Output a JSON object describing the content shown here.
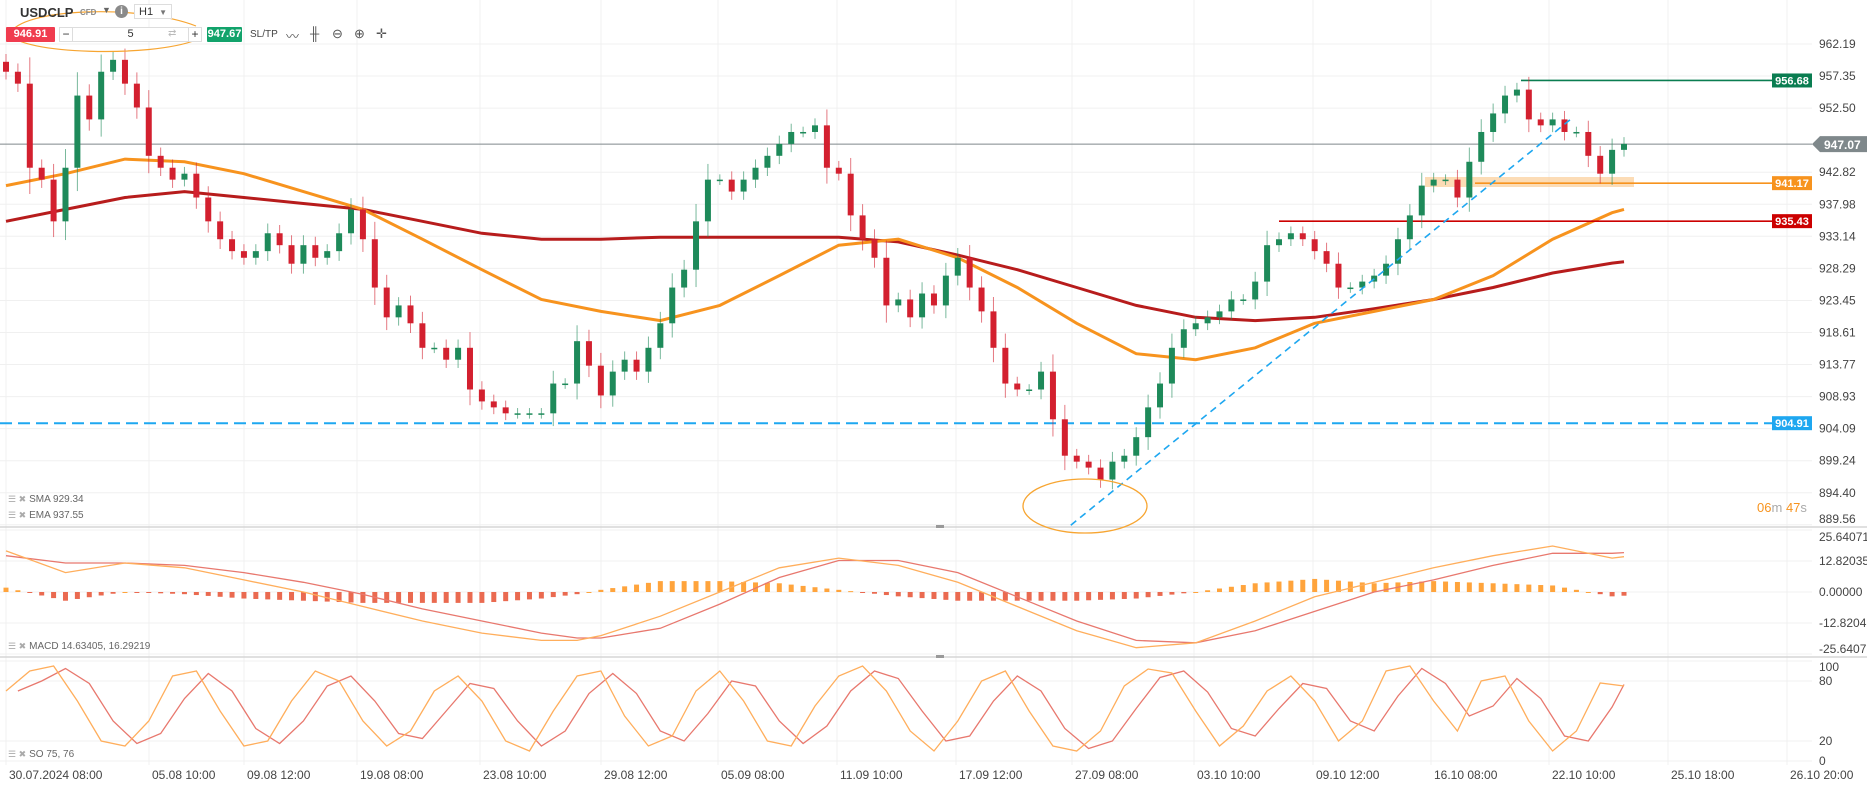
{
  "header": {
    "symbol": "USDCLP",
    "instrument_type": "CFD",
    "timeframe": "H1",
    "sell_price": "946.91",
    "buy_price": "947.67",
    "quantity": "5",
    "minus_label": "−",
    "plus_label": "+",
    "sltp_label": "SL/TP",
    "icons": [
      "chevron-down-icon",
      "info-icon",
      "line-chart-icon",
      "candles-icon",
      "zoom-out-icon",
      "zoom-in-icon",
      "crosshair-icon",
      "swap-icon"
    ]
  },
  "colors": {
    "bull": "#1e8a5a",
    "bear": "#d3202f",
    "sma": "#b71c1c",
    "ema": "#f7931e",
    "level_blue": "#1ea7f0",
    "level_green": "#0a7d51",
    "level_red": "#cc0000",
    "level_orange": "#f7931e",
    "current_price": "#7f888b",
    "macd_line": "#ffae5c",
    "signal_line": "#e8786e",
    "stoch_k": "#ffae5c",
    "stoch_d": "#e8786e"
  },
  "countdown": {
    "minutes": "06",
    "m": "m",
    "seconds": "47",
    "s": "s"
  },
  "legends": {
    "sma": "SMA 929.34",
    "ema": "EMA 937.55",
    "macd": "MACD 14.63405, 16.29219",
    "so": "SO 75, 76"
  },
  "chart_data": [
    {
      "type": "candlestick",
      "pane": "price",
      "price_ticks": [
        "962.19",
        "957.35",
        "952.50",
        "942.82",
        "937.98",
        "933.14",
        "928.29",
        "923.45",
        "918.61",
        "913.77",
        "908.93",
        "904.09",
        "899.24",
        "894.40",
        "889.56"
      ],
      "x_ticks": [
        "30.07.2024 08:00",
        "05.08 10:00",
        "09.08 12:00",
        "19.08 08:00",
        "23.08 10:00",
        "29.08 12:00",
        "05.09 08:00",
        "11.09 10:00",
        "17.09 12:00",
        "27.09 08:00",
        "03.10 10:00",
        "09.10 12:00",
        "16.10 08:00",
        "22.10 10:00",
        "25.10 18:00",
        "26.10 20:00"
      ],
      "closes": [
        958.0,
        956.2,
        943.5,
        941.7,
        935.4,
        943.5,
        954.4,
        950.8,
        958.0,
        959.8,
        956.2,
        952.6,
        945.3,
        943.5,
        941.7,
        942.6,
        939.0,
        935.4,
        932.7,
        930.9,
        929.9,
        930.9,
        933.6,
        931.8,
        929.0,
        931.8,
        929.9,
        930.9,
        933.6,
        937.2,
        932.7,
        925.4,
        920.9,
        922.7,
        920.0,
        916.3,
        916.3,
        914.5,
        916.3,
        910.0,
        908.2,
        907.3,
        906.4,
        906.4,
        906.4,
        906.4,
        910.9,
        910.9,
        917.3,
        913.6,
        909.1,
        912.7,
        914.5,
        912.7,
        916.3,
        920.0,
        925.4,
        928.1,
        935.4,
        941.7,
        941.7,
        939.9,
        941.7,
        943.5,
        945.3,
        947.1,
        948.9,
        948.9,
        949.9,
        943.5,
        942.6,
        936.3,
        932.7,
        929.9,
        922.7,
        923.6,
        920.9,
        924.5,
        922.7,
        927.2,
        929.9,
        925.4,
        921.8,
        916.3,
        910.9,
        910.0,
        910.0,
        912.7,
        905.5,
        900.0,
        899.1,
        898.2,
        896.4,
        899.1,
        900.0,
        902.8,
        907.3,
        910.9,
        916.3,
        919.1,
        920.0,
        920.9,
        921.8,
        923.6,
        923.6,
        926.3,
        931.8,
        932.7,
        933.6,
        932.7,
        930.9,
        929.0,
        925.4,
        925.4,
        926.3,
        927.2,
        929.0,
        932.7,
        936.3,
        940.8,
        941.7,
        941.7,
        939.0,
        944.4,
        948.9,
        951.7,
        954.4,
        955.3,
        950.8,
        949.9,
        950.8,
        948.9,
        948.9,
        945.3,
        942.6,
        946.2,
        947.1
      ],
      "sma": [
        [
          0,
          935.4
        ],
        [
          5,
          937.2
        ],
        [
          10,
          939.0
        ],
        [
          15,
          939.9
        ],
        [
          20,
          939.0
        ],
        [
          25,
          938.1
        ],
        [
          30,
          937.2
        ],
        [
          35,
          935.4
        ],
        [
          40,
          933.6
        ],
        [
          45,
          932.7
        ],
        [
          50,
          932.7
        ],
        [
          55,
          933.0
        ],
        [
          60,
          933.0
        ],
        [
          65,
          933.0
        ],
        [
          70,
          933.0
        ],
        [
          75,
          932.3
        ],
        [
          80,
          930.3
        ],
        [
          85,
          928.1
        ],
        [
          90,
          925.4
        ],
        [
          95,
          922.7
        ],
        [
          100,
          920.9
        ],
        [
          105,
          920.4
        ],
        [
          110,
          920.9
        ],
        [
          115,
          922.2
        ],
        [
          120,
          923.6
        ],
        [
          125,
          925.4
        ],
        [
          130,
          927.6
        ],
        [
          135,
          929.1
        ],
        [
          136,
          929.3
        ]
      ],
      "ema": [
        [
          0,
          940.8
        ],
        [
          5,
          942.6
        ],
        [
          10,
          944.8
        ],
        [
          15,
          944.4
        ],
        [
          20,
          942.6
        ],
        [
          25,
          939.9
        ],
        [
          30,
          937.2
        ],
        [
          35,
          932.7
        ],
        [
          40,
          928.1
        ],
        [
          45,
          923.6
        ],
        [
          50,
          921.8
        ],
        [
          55,
          920.4
        ],
        [
          60,
          922.7
        ],
        [
          65,
          927.2
        ],
        [
          70,
          931.8
        ],
        [
          75,
          932.7
        ],
        [
          80,
          929.9
        ],
        [
          85,
          925.4
        ],
        [
          90,
          920.0
        ],
        [
          95,
          915.4
        ],
        [
          100,
          914.5
        ],
        [
          105,
          916.3
        ],
        [
          110,
          920.0
        ],
        [
          115,
          921.8
        ],
        [
          120,
          923.6
        ],
        [
          125,
          927.2
        ],
        [
          130,
          932.7
        ],
        [
          135,
          936.7
        ],
        [
          136,
          937.2
        ]
      ],
      "levels": {
        "current": "947.07",
        "high": "956.68",
        "resistance": "941.17",
        "mid": "935.43",
        "support": "904.91"
      },
      "trendline": [
        [
          89.5,
          889.5
        ],
        [
          131.5,
          950.8
        ]
      ]
    },
    {
      "type": "line",
      "pane": "macd",
      "y_ticks": [
        "25.64071",
        "12.82035",
        "0.00000",
        "-12.8204",
        "-25.6407"
      ],
      "macd": [
        [
          0,
          17
        ],
        [
          5,
          8
        ],
        [
          10,
          12
        ],
        [
          15,
          10
        ],
        [
          20,
          5
        ],
        [
          25,
          0
        ],
        [
          30,
          -6
        ],
        [
          35,
          -12
        ],
        [
          40,
          -17
        ],
        [
          45,
          -20
        ],
        [
          48,
          -20
        ],
        [
          50,
          -18
        ],
        [
          55,
          -10
        ],
        [
          60,
          0
        ],
        [
          65,
          10
        ],
        [
          70,
          14
        ],
        [
          75,
          11
        ],
        [
          80,
          4
        ],
        [
          85,
          -6
        ],
        [
          90,
          -16
        ],
        [
          95,
          -23
        ],
        [
          100,
          -21
        ],
        [
          105,
          -12
        ],
        [
          110,
          -2
        ],
        [
          115,
          4
        ],
        [
          120,
          10
        ],
        [
          125,
          15
        ],
        [
          130,
          19
        ],
        [
          135,
          14
        ],
        [
          136,
          14.6
        ]
      ],
      "signal": [
        [
          0,
          15
        ],
        [
          5,
          12
        ],
        [
          10,
          12
        ],
        [
          15,
          11
        ],
        [
          20,
          8
        ],
        [
          25,
          4
        ],
        [
          30,
          -1
        ],
        [
          35,
          -7
        ],
        [
          40,
          -12
        ],
        [
          45,
          -17
        ],
        [
          48,
          -19
        ],
        [
          50,
          -19
        ],
        [
          55,
          -15
        ],
        [
          60,
          -5
        ],
        [
          65,
          6
        ],
        [
          70,
          13
        ],
        [
          75,
          13
        ],
        [
          80,
          8
        ],
        [
          85,
          -2
        ],
        [
          90,
          -12
        ],
        [
          95,
          -20
        ],
        [
          100,
          -21
        ],
        [
          105,
          -16
        ],
        [
          110,
          -8
        ],
        [
          115,
          0
        ],
        [
          120,
          5
        ],
        [
          125,
          11
        ],
        [
          130,
          16
        ],
        [
          135,
          16
        ],
        [
          136,
          16.3
        ]
      ]
    },
    {
      "type": "line",
      "pane": "stochastic",
      "y_ticks": [
        "100",
        "80",
        "20",
        "0"
      ],
      "k": [
        70,
        90,
        95,
        60,
        20,
        15,
        40,
        85,
        90,
        50,
        15,
        20,
        60,
        90,
        80,
        40,
        15,
        30,
        70,
        85,
        60,
        20,
        10,
        50,
        85,
        90,
        45,
        15,
        25,
        70,
        90,
        60,
        20,
        15,
        55,
        85,
        95,
        70,
        30,
        10,
        40,
        80,
        90,
        50,
        15,
        10,
        30,
        75,
        92,
        88,
        50,
        15,
        35,
        70,
        85,
        60,
        20,
        40,
        90,
        95,
        60,
        30,
        80,
        85,
        40,
        10,
        30,
        78,
        75
      ]
    }
  ]
}
